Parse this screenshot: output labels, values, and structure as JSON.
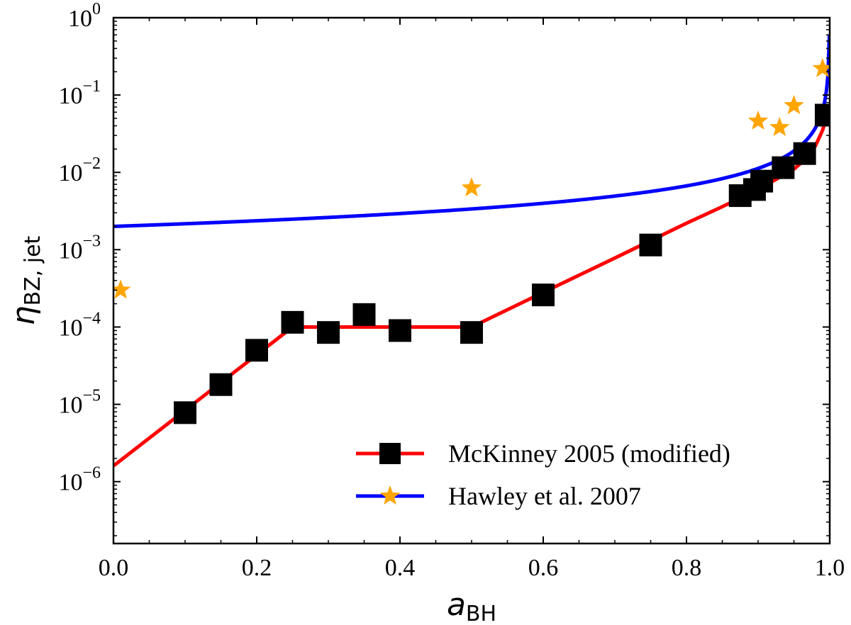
{
  "chart_data": {
    "type": "line",
    "title": "",
    "xlabel": {
      "main": "a",
      "sub": "BH"
    },
    "ylabel": {
      "main": "η",
      "sub": "BZ, jet"
    },
    "xlim": [
      0.0,
      1.0
    ],
    "ylim_log10": [
      -6.8,
      0.0
    ],
    "y_scale": "log",
    "grid": false,
    "legend_placement": "lower-right",
    "x_ticks": [
      {
        "value": 0.0,
        "label": "0.0"
      },
      {
        "value": 0.2,
        "label": "0.2"
      },
      {
        "value": 0.4,
        "label": "0.4"
      },
      {
        "value": 0.6,
        "label": "0.6"
      },
      {
        "value": 0.8,
        "label": "0.8"
      },
      {
        "value": 1.0,
        "label": "1.0"
      }
    ],
    "y_ticks": [
      {
        "exp": 0,
        "base": "10",
        "power": "0"
      },
      {
        "exp": -1,
        "base": "10",
        "power": "−1"
      },
      {
        "exp": -2,
        "base": "10",
        "power": "−2"
      },
      {
        "exp": -3,
        "base": "10",
        "power": "−3"
      },
      {
        "exp": -4,
        "base": "10",
        "power": "−4"
      },
      {
        "exp": -5,
        "base": "10",
        "power": "−5"
      },
      {
        "exp": -6,
        "base": "10",
        "power": "−6"
      }
    ],
    "series": [
      {
        "name": "McKinney 2005 (modified)",
        "line_color": "#ff0000",
        "marker_color": "#000000",
        "marker": "square",
        "line_points": [
          [
            0.0,
            1.6e-06
          ],
          [
            0.25,
            0.0001
          ],
          [
            0.5,
            0.0001
          ],
          [
            0.6,
            0.00028
          ],
          [
            0.7,
            0.00078
          ],
          [
            0.8,
            0.0022
          ],
          [
            0.85,
            0.0036
          ],
          [
            0.9,
            0.006
          ],
          [
            0.95,
            0.011
          ],
          [
            0.97,
            0.016
          ],
          [
            0.98,
            0.022
          ],
          [
            0.99,
            0.035
          ],
          [
            0.995,
            0.05
          ],
          [
            0.999,
            0.07
          ]
        ],
        "points": [
          [
            0.1,
            7.8e-06
          ],
          [
            0.15,
            1.8e-05
          ],
          [
            0.2,
            5e-05
          ],
          [
            0.25,
            0.000115
          ],
          [
            0.3,
            8.5e-05
          ],
          [
            0.35,
            0.000145
          ],
          [
            0.4,
            9e-05
          ],
          [
            0.5,
            8.5e-05
          ],
          [
            0.6,
            0.00026
          ],
          [
            0.75,
            0.00115
          ],
          [
            0.875,
            0.005
          ],
          [
            0.895,
            0.006
          ],
          [
            0.905,
            0.0077
          ],
          [
            0.935,
            0.0115
          ],
          [
            0.965,
            0.0175
          ],
          [
            0.995,
            0.055
          ]
        ]
      },
      {
        "name": "Hawley et al. 2007",
        "line_color": "#0000ff",
        "marker_color": "#ffa500",
        "marker": "star",
        "line_formula": "0.002 / (1 - a)^0.75",
        "points": [
          [
            0.01,
            0.0003
          ],
          [
            0.5,
            0.0063
          ],
          [
            0.9,
            0.046
          ],
          [
            0.93,
            0.038
          ],
          [
            0.95,
            0.073
          ],
          [
            0.99,
            0.22
          ]
        ]
      }
    ]
  }
}
